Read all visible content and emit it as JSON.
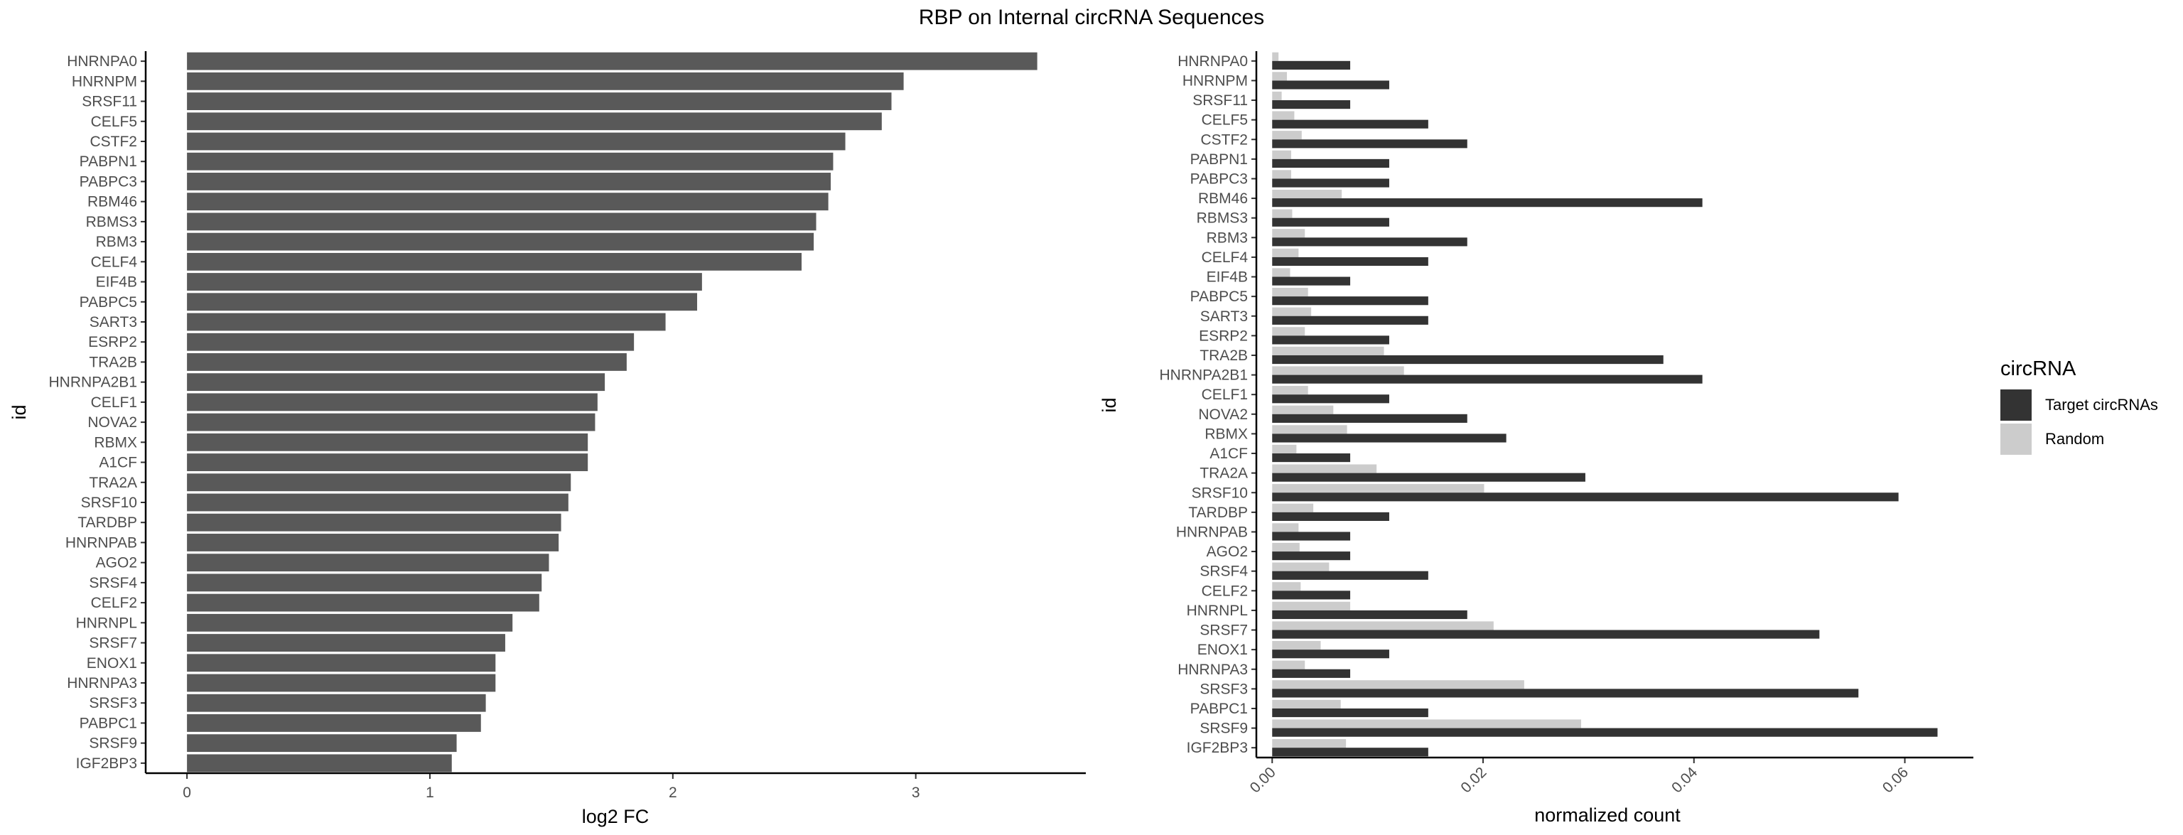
{
  "title": "RBP on Internal circRNA Sequences",
  "colors": {
    "bar_left": "#595959",
    "target": "#333333",
    "random": "#cccccc",
    "axis": "#000000"
  },
  "chart_data": [
    {
      "type": "bar",
      "orientation": "horizontal",
      "xlabel": "log2 FC",
      "ylabel": "id",
      "xlim": [
        -0.17,
        3.7
      ],
      "xticks": [
        0,
        1,
        2,
        3
      ],
      "grid": false,
      "categories": [
        "HNRNPA0",
        "HNRNPM",
        "SRSF11",
        "CELF5",
        "CSTF2",
        "PABPN1",
        "PABPC3",
        "RBM46",
        "RBMS3",
        "RBM3",
        "CELF4",
        "EIF4B",
        "PABPC5",
        "SART3",
        "ESRP2",
        "TRA2B",
        "HNRNPA2B1",
        "CELF1",
        "NOVA2",
        "RBMX",
        "A1CF",
        "TRA2A",
        "SRSF10",
        "TARDBP",
        "HNRNPAB",
        "AGO2",
        "SRSF4",
        "CELF2",
        "HNRNPL",
        "SRSF7",
        "ENOX1",
        "HNRNPA3",
        "SRSF3",
        "PABPC1",
        "SRSF9",
        "IGF2BP3"
      ],
      "values": [
        3.5,
        2.95,
        2.9,
        2.86,
        2.71,
        2.66,
        2.65,
        2.64,
        2.59,
        2.58,
        2.53,
        2.12,
        2.1,
        1.97,
        1.84,
        1.81,
        1.72,
        1.69,
        1.68,
        1.65,
        1.65,
        1.58,
        1.57,
        1.54,
        1.53,
        1.49,
        1.46,
        1.45,
        1.34,
        1.31,
        1.27,
        1.27,
        1.23,
        1.21,
        1.11,
        1.09
      ]
    },
    {
      "type": "bar",
      "orientation": "horizontal",
      "grouped": true,
      "xlabel": "normalized count",
      "ylabel": "id",
      "xlim": [
        -0.0015,
        0.0665
      ],
      "xticks": [
        0.0,
        0.02,
        0.04,
        0.06
      ],
      "xtick_labels": [
        "0.00",
        "0.02",
        "0.04",
        "0.06"
      ],
      "grid": false,
      "legend": {
        "title": "circRNA",
        "placement": "right"
      },
      "categories": [
        "HNRNPA0",
        "HNRNPM",
        "SRSF11",
        "CELF5",
        "CSTF2",
        "PABPN1",
        "PABPC3",
        "RBM46",
        "RBMS3",
        "RBM3",
        "CELF4",
        "EIF4B",
        "PABPC5",
        "SART3",
        "ESRP2",
        "TRA2B",
        "HNRNPA2B1",
        "CELF1",
        "NOVA2",
        "RBMX",
        "A1CF",
        "TRA2A",
        "SRSF10",
        "TARDBP",
        "HNRNPAB",
        "AGO2",
        "SRSF4",
        "CELF2",
        "HNRNPL",
        "SRSF7",
        "ENOX1",
        "HNRNPA3",
        "SRSF3",
        "PABPC1",
        "SRSF9",
        "IGF2BP3"
      ],
      "series": [
        {
          "name": "Target circRNAs",
          "color": "#333333",
          "values": [
            0.0074,
            0.0111,
            0.0074,
            0.0148,
            0.0185,
            0.0111,
            0.0111,
            0.0408,
            0.0111,
            0.0185,
            0.0148,
            0.0074,
            0.0148,
            0.0148,
            0.0111,
            0.0371,
            0.0408,
            0.0111,
            0.0185,
            0.0222,
            0.0074,
            0.0297,
            0.0594,
            0.0111,
            0.0074,
            0.0074,
            0.0148,
            0.0074,
            0.0185,
            0.0519,
            0.0111,
            0.0074,
            0.0556,
            0.0148,
            0.0631,
            0.0148
          ]
        },
        {
          "name": "Random",
          "color": "#cccccc",
          "values": [
            0.0006,
            0.0014,
            0.0009,
            0.0021,
            0.0028,
            0.0018,
            0.0018,
            0.0066,
            0.0019,
            0.0031,
            0.0025,
            0.0017,
            0.0034,
            0.0037,
            0.0031,
            0.0106,
            0.0125,
            0.0034,
            0.0058,
            0.0071,
            0.0023,
            0.0099,
            0.0201,
            0.0039,
            0.0025,
            0.0026,
            0.0054,
            0.0027,
            0.0074,
            0.021,
            0.0046,
            0.0031,
            0.0239,
            0.0065,
            0.0293,
            0.007
          ]
        }
      ]
    }
  ]
}
